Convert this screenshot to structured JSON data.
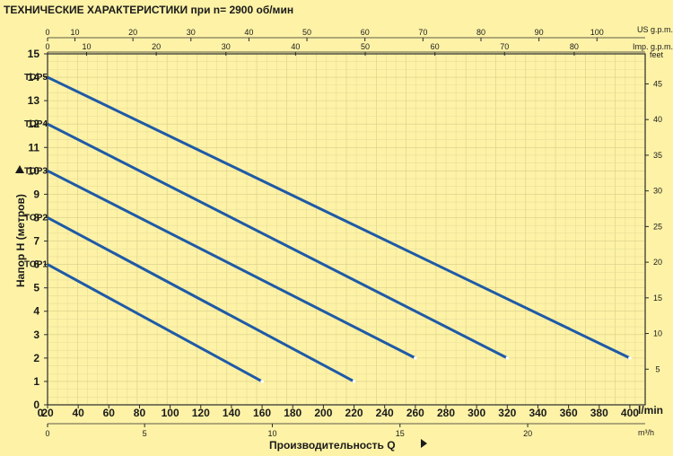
{
  "chart_data": {
    "type": "line",
    "title": "ТЕХНИЧЕСКИЕ ХАРАКТЕРИСТИКИ при n= 2900 об/мин",
    "xlabel": "Производительность  Q",
    "ylabel": "Напор Н   (метров)",
    "x_unit": "l/min",
    "xlim": [
      0,
      410
    ],
    "ylim": [
      0,
      15
    ],
    "grid": true,
    "x_ticks": [
      "0",
      "20",
      "40",
      "60",
      "80",
      "100",
      "120",
      "140",
      "160",
      "180",
      "200",
      "220",
      "240",
      "260",
      "280",
      "300",
      "320",
      "340",
      "360",
      "380",
      "400"
    ],
    "y_ticks": [
      "0",
      "1",
      "2",
      "3",
      "4",
      "5",
      "6",
      "7",
      "8",
      "9",
      "10",
      "11",
      "12",
      "13",
      "14",
      "15"
    ],
    "secondary_axes": {
      "m3h": {
        "unit": "m³/h",
        "ticks": [
          "0",
          "5",
          "10",
          "15",
          "20"
        ]
      },
      "us_gpm": {
        "unit": "US g.p.m.",
        "ticks": [
          "0",
          "10",
          "20",
          "30",
          "40",
          "50",
          "60",
          "70",
          "80",
          "90",
          "100"
        ]
      },
      "imp_gpm": {
        "unit": "Imp. g.p.m.",
        "ticks": [
          "0",
          "10",
          "20",
          "30",
          "40",
          "50",
          "60",
          "70",
          "80"
        ]
      },
      "feet": {
        "unit": "feet",
        "ticks": [
          "5",
          "10",
          "15",
          "20",
          "25",
          "30",
          "35",
          "40",
          "45"
        ]
      }
    },
    "series": [
      {
        "name": "TOP1",
        "x": [
          20,
          160
        ],
        "y": [
          6,
          1
        ]
      },
      {
        "name": "TOP2",
        "x": [
          20,
          220
        ],
        "y": [
          8,
          1
        ]
      },
      {
        "name": "TOP3",
        "x": [
          20,
          260
        ],
        "y": [
          10,
          2
        ]
      },
      {
        "name": "TOP4",
        "x": [
          20,
          320
        ],
        "y": [
          12,
          2
        ]
      },
      {
        "name": "TOP5",
        "x": [
          20,
          400
        ],
        "y": [
          14,
          2
        ]
      }
    ],
    "line_color": "#1f5aa6"
  }
}
